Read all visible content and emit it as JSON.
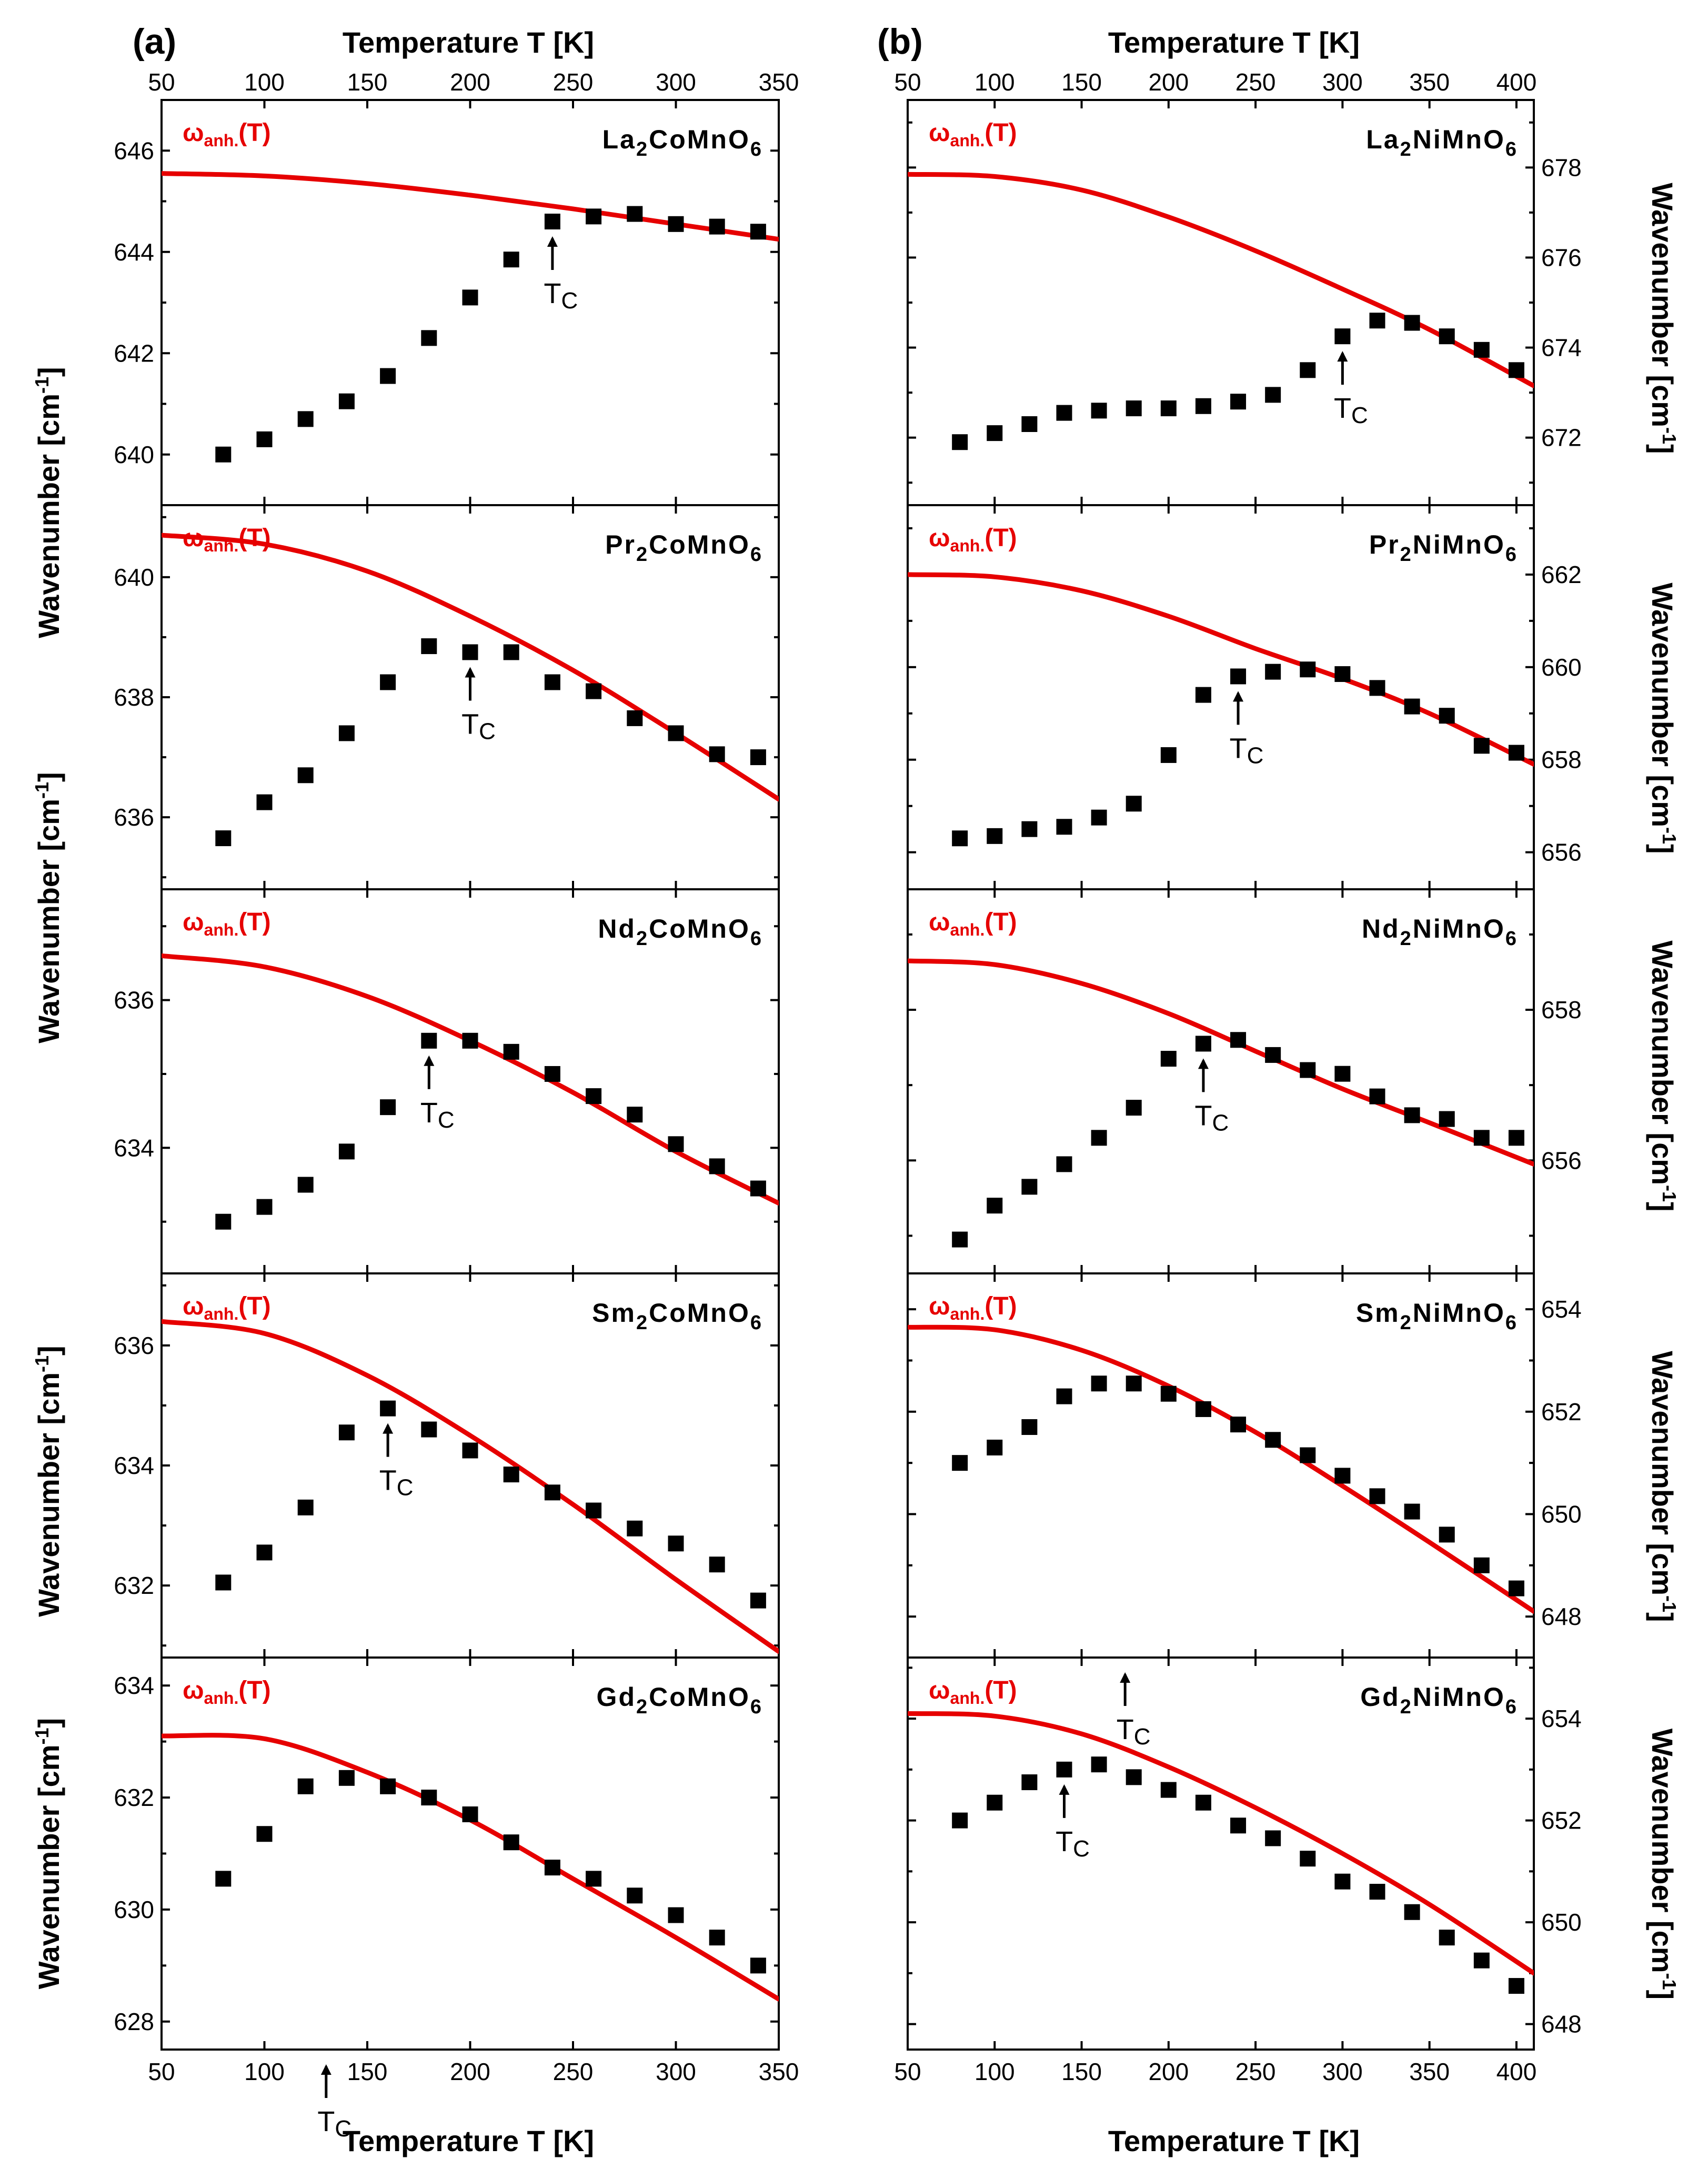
{
  "panel_labels": {
    "a": "(a)",
    "b": "(b)"
  },
  "axis_labels": {
    "x": "Temperature T [K]",
    "y_main": "Wavenumber [cm",
    "y_exp": "-1",
    "y_close": "]"
  },
  "annotations": {
    "omega_main": "ω",
    "omega_sub": "anh.",
    "omega_arg": "(T)",
    "tc_main": "T",
    "tc_sub": "C"
  },
  "colors": {
    "fit": "#e60000",
    "points": "#000000"
  },
  "chart_data": [
    {
      "type": "scatter+line",
      "column": "a",
      "row": 0,
      "title_parts": [
        "La",
        "2",
        "CoMnO",
        "6"
      ],
      "xlim": [
        50,
        350
      ],
      "xticks": [
        50,
        100,
        150,
        200,
        250,
        300,
        350
      ],
      "ylim": [
        639,
        647
      ],
      "yticks": [
        640,
        642,
        644,
        646
      ],
      "x": [
        80,
        100,
        120,
        140,
        160,
        180,
        200,
        220,
        240,
        260,
        280,
        300,
        320,
        340
      ],
      "y": [
        640.0,
        640.3,
        640.7,
        641.05,
        641.55,
        642.3,
        643.1,
        643.85,
        644.6,
        644.7,
        644.75,
        644.55,
        644.5,
        644.4
      ],
      "fit": {
        "x": [
          50,
          100,
          150,
          200,
          250,
          300,
          350
        ],
        "y": [
          645.55,
          645.5,
          645.35,
          645.12,
          644.85,
          644.55,
          644.25
        ]
      },
      "tc": 240
    },
    {
      "type": "scatter+line",
      "column": "a",
      "row": 1,
      "title_parts": [
        "Pr",
        "2",
        "CoMnO",
        "6"
      ],
      "xlim": [
        50,
        350
      ],
      "xticks": [
        50,
        100,
        150,
        200,
        250,
        300,
        350
      ],
      "ylim": [
        634.8,
        641.2
      ],
      "yticks": [
        636,
        638,
        640
      ],
      "x": [
        80,
        100,
        120,
        140,
        160,
        180,
        200,
        220,
        240,
        260,
        280,
        300,
        320,
        340
      ],
      "y": [
        635.65,
        636.25,
        636.7,
        637.4,
        638.25,
        638.85,
        638.75,
        638.75,
        638.25,
        638.1,
        637.65,
        637.4,
        637.05,
        637.0
      ],
      "fit": {
        "x": [
          50,
          100,
          150,
          200,
          250,
          300,
          350
        ],
        "y": [
          640.7,
          640.55,
          640.1,
          639.35,
          638.45,
          637.4,
          636.3
        ]
      },
      "tc": 200
    },
    {
      "type": "scatter+line",
      "column": "a",
      "row": 2,
      "title_parts": [
        "Nd",
        "2",
        "CoMnO",
        "6"
      ],
      "xlim": [
        50,
        350
      ],
      "xticks": [
        50,
        100,
        150,
        200,
        250,
        300,
        350
      ],
      "ylim": [
        632.3,
        637.5
      ],
      "yticks": [
        634,
        636
      ],
      "x": [
        80,
        100,
        120,
        140,
        160,
        180,
        200,
        220,
        240,
        260,
        280,
        300,
        320,
        340
      ],
      "y": [
        633.0,
        633.2,
        633.5,
        633.95,
        634.55,
        635.45,
        635.45,
        635.3,
        635.0,
        634.7,
        634.45,
        634.05,
        633.75,
        633.45
      ],
      "fit": {
        "x": [
          50,
          100,
          150,
          200,
          250,
          300,
          350
        ],
        "y": [
          636.6,
          636.45,
          636.05,
          635.45,
          634.75,
          633.95,
          633.25
        ]
      },
      "tc": 180
    },
    {
      "type": "scatter+line",
      "column": "a",
      "row": 3,
      "title_parts": [
        "Sm",
        "2",
        "CoMnO",
        "6"
      ],
      "xlim": [
        50,
        350
      ],
      "xticks": [
        50,
        100,
        150,
        200,
        250,
        300,
        350
      ],
      "ylim": [
        630.8,
        637.2
      ],
      "yticks": [
        632,
        634,
        636
      ],
      "x": [
        80,
        100,
        120,
        140,
        160,
        180,
        200,
        220,
        240,
        260,
        280,
        300,
        320,
        340
      ],
      "y": [
        632.05,
        632.55,
        633.3,
        634.55,
        634.95,
        634.6,
        634.25,
        633.85,
        633.55,
        633.25,
        632.95,
        632.7,
        632.35,
        631.75
      ],
      "fit": {
        "x": [
          50,
          100,
          150,
          200,
          250,
          300,
          350
        ],
        "y": [
          636.4,
          636.2,
          635.5,
          634.5,
          633.35,
          632.1,
          630.9
        ]
      },
      "tc": 160
    },
    {
      "type": "scatter+line",
      "column": "a",
      "row": 4,
      "title_parts": [
        "Gd",
        "2",
        "CoMnO",
        "6"
      ],
      "xlim": [
        50,
        350
      ],
      "xticks": [
        50,
        100,
        150,
        200,
        250,
        300,
        350
      ],
      "ylim": [
        627.5,
        634.5
      ],
      "yticks": [
        628,
        630,
        632,
        634
      ],
      "x": [
        80,
        100,
        120,
        140,
        160,
        180,
        200,
        220,
        240,
        260,
        280,
        300,
        320,
        340
      ],
      "y": [
        630.55,
        631.35,
        632.2,
        632.35,
        632.2,
        632.0,
        631.7,
        631.2,
        630.75,
        630.55,
        630.25,
        629.9,
        629.5,
        629.0
      ],
      "fit": {
        "x": [
          50,
          100,
          150,
          200,
          250,
          300,
          350
        ],
        "y": [
          633.1,
          633.05,
          632.45,
          631.6,
          630.55,
          629.5,
          628.4
        ]
      },
      "tc": 130
    },
    {
      "type": "scatter+line",
      "column": "b",
      "row": 0,
      "title_parts": [
        "La",
        "2",
        "NiMnO",
        "6"
      ],
      "xlim": [
        50,
        410
      ],
      "xticks": [
        50,
        100,
        150,
        200,
        250,
        300,
        350,
        400
      ],
      "ylim": [
        670.5,
        679.5
      ],
      "yticks": [
        672,
        674,
        676,
        678
      ],
      "x": [
        80,
        100,
        120,
        140,
        160,
        180,
        200,
        220,
        240,
        260,
        280,
        300,
        320,
        340,
        360,
        380,
        400
      ],
      "y": [
        671.9,
        672.1,
        672.3,
        672.55,
        672.6,
        672.65,
        672.65,
        672.7,
        672.8,
        672.95,
        673.5,
        674.25,
        674.6,
        674.55,
        674.25,
        673.95,
        673.5
      ],
      "fit": {
        "x": [
          50,
          100,
          150,
          200,
          250,
          300,
          350,
          410
        ],
        "y": [
          677.85,
          677.8,
          677.5,
          676.9,
          676.15,
          675.3,
          674.4,
          673.15
        ]
      },
      "tc": 300
    },
    {
      "type": "scatter+line",
      "column": "b",
      "row": 1,
      "title_parts": [
        "Pr",
        "2",
        "NiMnO",
        "6"
      ],
      "xlim": [
        50,
        410
      ],
      "xticks": [
        50,
        100,
        150,
        200,
        250,
        300,
        350,
        400
      ],
      "ylim": [
        655.2,
        663.5
      ],
      "yticks": [
        656,
        658,
        660,
        662
      ],
      "x": [
        80,
        100,
        120,
        140,
        160,
        180,
        200,
        220,
        240,
        260,
        280,
        300,
        320,
        340,
        360,
        380,
        400
      ],
      "y": [
        656.3,
        656.35,
        656.5,
        656.55,
        656.75,
        657.05,
        658.1,
        659.4,
        659.8,
        659.9,
        659.95,
        659.85,
        659.55,
        659.15,
        658.95,
        658.3,
        658.15
      ],
      "fit": {
        "x": [
          50,
          100,
          150,
          200,
          250,
          300,
          350,
          410
        ],
        "y": [
          662.0,
          661.95,
          661.65,
          661.1,
          660.4,
          659.75,
          659.0,
          657.9
        ]
      },
      "tc": 240
    },
    {
      "type": "scatter+line",
      "column": "b",
      "row": 2,
      "title_parts": [
        "Nd",
        "2",
        "NiMnO",
        "6"
      ],
      "xlim": [
        50,
        410
      ],
      "xticks": [
        50,
        100,
        150,
        200,
        250,
        300,
        350,
        400
      ],
      "ylim": [
        654.5,
        659.6
      ],
      "yticks": [
        656,
        658
      ],
      "x": [
        80,
        100,
        120,
        140,
        160,
        180,
        200,
        220,
        240,
        260,
        280,
        300,
        320,
        340,
        360,
        380,
        400
      ],
      "y": [
        654.95,
        655.4,
        655.65,
        655.95,
        656.3,
        656.7,
        657.35,
        657.55,
        657.6,
        657.4,
        657.2,
        657.15,
        656.85,
        656.6,
        656.55,
        656.3,
        656.3
      ],
      "fit": {
        "x": [
          50,
          100,
          150,
          200,
          250,
          300,
          350,
          410
        ],
        "y": [
          658.65,
          658.6,
          658.35,
          657.95,
          657.45,
          656.95,
          656.5,
          655.95
        ]
      },
      "tc": 220
    },
    {
      "type": "scatter+line",
      "column": "b",
      "row": 3,
      "title_parts": [
        "Sm",
        "2",
        "NiMnO",
        "6"
      ],
      "xlim": [
        50,
        410
      ],
      "xticks": [
        50,
        100,
        150,
        200,
        250,
        300,
        350,
        400
      ],
      "ylim": [
        647.2,
        654.7
      ],
      "yticks": [
        648,
        650,
        652,
        654
      ],
      "x": [
        80,
        100,
        120,
        140,
        160,
        180,
        200,
        220,
        240,
        260,
        280,
        300,
        320,
        340,
        360,
        380,
        400
      ],
      "y": [
        651.0,
        651.3,
        651.7,
        652.3,
        652.55,
        652.55,
        652.35,
        652.05,
        651.75,
        651.45,
        651.15,
        650.75,
        650.35,
        650.05,
        649.6,
        649.0,
        648.55
      ],
      "fit": {
        "x": [
          50,
          100,
          150,
          200,
          250,
          300,
          350,
          410
        ],
        "y": [
          653.65,
          653.6,
          653.2,
          652.5,
          651.6,
          650.55,
          649.45,
          648.1
        ]
      },
      "tc": 175
    },
    {
      "type": "scatter+line",
      "column": "b",
      "row": 4,
      "title_parts": [
        "Gd",
        "2",
        "NiMnO",
        "6"
      ],
      "xlim": [
        50,
        410
      ],
      "xticks": [
        50,
        100,
        150,
        200,
        250,
        300,
        350,
        400
      ],
      "ylim": [
        647.5,
        655.2
      ],
      "yticks": [
        648,
        650,
        652,
        654
      ],
      "x": [
        80,
        100,
        120,
        140,
        160,
        180,
        200,
        220,
        240,
        260,
        280,
        300,
        320,
        340,
        360,
        380,
        400
      ],
      "y": [
        652.0,
        652.35,
        652.75,
        653.0,
        653.1,
        652.85,
        652.6,
        652.35,
        651.9,
        651.65,
        651.25,
        650.8,
        650.6,
        650.2,
        649.7,
        649.25,
        648.75
      ],
      "fit": {
        "x": [
          50,
          100,
          150,
          200,
          250,
          300,
          350,
          410
        ],
        "y": [
          654.1,
          654.05,
          653.7,
          653.05,
          652.25,
          651.35,
          650.35,
          649.0
        ]
      },
      "tc": 140
    }
  ]
}
